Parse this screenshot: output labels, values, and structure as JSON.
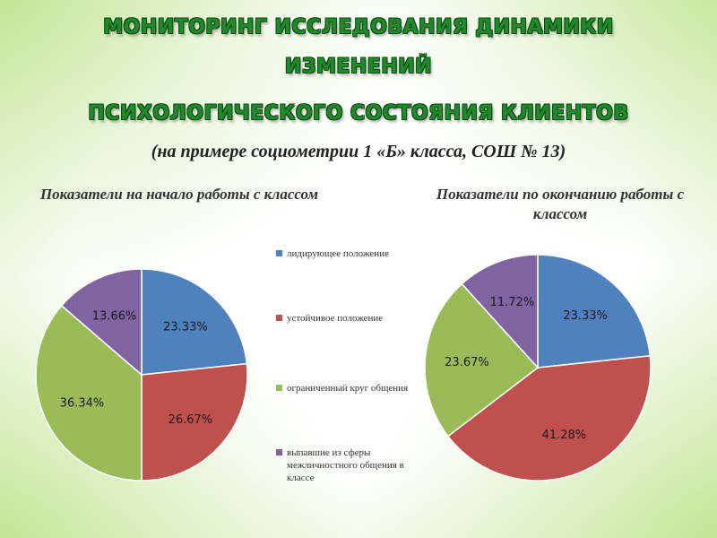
{
  "title_lines": [
    "МОНИТОРИНГ ИССЛЕДОВАНИЯ ДИНАМИКИ",
    "ИЗМЕНЕНИЙ",
    "ПСИХОЛОГИЧЕСКОГО СОСТОЯНИЯ КЛИЕНТОВ"
  ],
  "subtitle": "(на примере социометрии 1 «Б» класса, СОШ № 13)",
  "colors": {
    "series": [
      "#4f81bd",
      "#c0504d",
      "#9bbb59",
      "#8064a2"
    ]
  },
  "legend": [
    "лидирующее положение",
    "устойчивое положение",
    "ограниченный круг общения",
    "выпавшие из сферы межличностного общения в классе"
  ],
  "chart_data": [
    {
      "type": "pie",
      "title": "Показатели на начало работы с классом",
      "categories": [
        "лидирующее положение",
        "устойчивое положение",
        "ограниченный круг общения",
        "выпавшие из сферы межличностного общения в классе"
      ],
      "values": [
        23.33,
        26.67,
        36.34,
        13.66
      ],
      "labels": [
        "23.33%",
        "26.67%",
        "36.34%",
        "13.66%"
      ],
      "legend_position": "right"
    },
    {
      "type": "pie",
      "title": "Показатели по окончанию работы с классом",
      "categories": [
        "лидирующее положение",
        "устойчивое положение",
        "ограниченный круг общения",
        "выпавшие из сферы межличностного общения в классе"
      ],
      "values": [
        23.33,
        41.28,
        23.67,
        11.72
      ],
      "labels": [
        "23.33%",
        "41.28%",
        "23.67%",
        "11.72%"
      ],
      "legend_position": "left"
    }
  ]
}
